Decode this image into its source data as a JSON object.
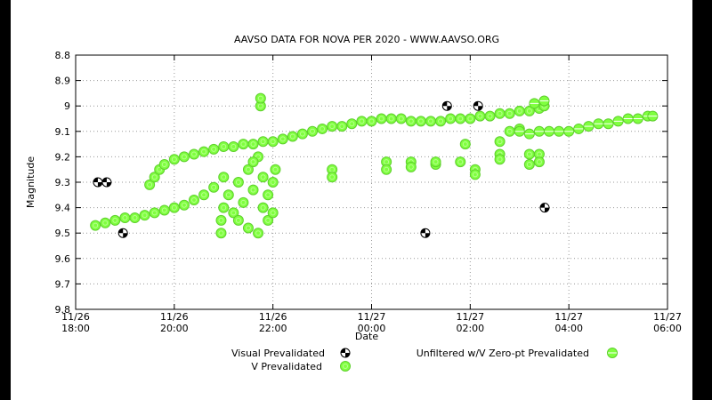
{
  "chart_data": {
    "type": "scatter",
    "title": "AAVSO DATA FOR NOVA PER 2020 - WWW.AAVSO.ORG",
    "xlabel": "Date",
    "ylabel": "Magnitude",
    "xlim": [
      18,
      30
    ],
    "ylim": [
      9.8,
      8.8
    ],
    "xticks": [
      {
        "value": 18,
        "label": "11/26 18:00"
      },
      {
        "value": 20,
        "label": "11/26 20:00"
      },
      {
        "value": 22,
        "label": "11/26 22:00"
      },
      {
        "value": 24,
        "label": "11/27 00:00"
      },
      {
        "value": 26,
        "label": "11/27 02:00"
      },
      {
        "value": 28,
        "label": "11/27 04:00"
      },
      {
        "value": 30,
        "label": "11/27 06:00"
      }
    ],
    "yticks": [
      8.8,
      8.9,
      9,
      9.1,
      9.2,
      9.3,
      9.4,
      9.5,
      9.6,
      9.7,
      9.8
    ],
    "grid": true,
    "series": [
      {
        "name": "Visual Prevalidated",
        "color": "#000000",
        "x": [
          18.45,
          18.63,
          18.96,
          25.09,
          25.53,
          26.16,
          27.51
        ],
        "values": [
          9.3,
          9.3,
          9.5,
          9.5,
          9.0,
          9.0,
          9.4
        ]
      },
      {
        "name": "V Prevalidated",
        "color": "#80ff40",
        "x": [
          19.5,
          19.6,
          19.7,
          19.8,
          20.0,
          20.2,
          20.4,
          20.6,
          20.8,
          21.0,
          21.2,
          21.4,
          21.6,
          21.8,
          22.0,
          22.2,
          22.4,
          22.6,
          22.8,
          23.0,
          23.2,
          23.4,
          23.6,
          23.8,
          24.0,
          24.2,
          24.4,
          24.6,
          24.8,
          25.0,
          25.2,
          25.4,
          25.6,
          25.8,
          26.0,
          26.2,
          26.4,
          26.6,
          26.8,
          27.0,
          27.2,
          27.4,
          27.5,
          18.4,
          18.6,
          18.8,
          19.0,
          19.2,
          19.4,
          19.6,
          19.8,
          20.0,
          20.2,
          20.4,
          20.6,
          20.8,
          21.0,
          20.95,
          20.95,
          21.0,
          21.1,
          21.2,
          21.3,
          21.3,
          21.4,
          21.5,
          21.5,
          21.6,
          21.7,
          21.7,
          21.8,
          21.8,
          21.9,
          21.9,
          22.0,
          22.0,
          21.75,
          21.75,
          22.05,
          21.6,
          23.2,
          23.2,
          24.3,
          24.3,
          24.8,
          24.8,
          25.3,
          25.3,
          25.8,
          25.9,
          26.1,
          26.1,
          26.6,
          26.6,
          26.6,
          27.2,
          27.2,
          27.4,
          27.4,
          26.8,
          27.0
        ],
        "values": [
          9.31,
          9.28,
          9.25,
          9.23,
          9.21,
          9.2,
          9.19,
          9.18,
          9.17,
          9.16,
          9.16,
          9.15,
          9.15,
          9.14,
          9.14,
          9.13,
          9.12,
          9.11,
          9.1,
          9.09,
          9.08,
          9.08,
          9.07,
          9.06,
          9.06,
          9.05,
          9.05,
          9.05,
          9.06,
          9.06,
          9.06,
          9.06,
          9.05,
          9.05,
          9.05,
          9.04,
          9.04,
          9.03,
          9.03,
          9.02,
          9.02,
          9.01,
          9.0,
          9.47,
          9.46,
          9.45,
          9.44,
          9.44,
          9.43,
          9.42,
          9.41,
          9.4,
          9.39,
          9.37,
          9.35,
          9.32,
          9.28,
          9.45,
          9.5,
          9.4,
          9.35,
          9.42,
          9.3,
          9.45,
          9.38,
          9.25,
          9.48,
          9.33,
          9.5,
          9.2,
          9.4,
          9.28,
          9.45,
          9.35,
          9.3,
          9.42,
          9.0,
          8.97,
          9.25,
          9.22,
          9.25,
          9.28,
          9.22,
          9.25,
          9.22,
          9.24,
          9.23,
          9.22,
          9.22,
          9.15,
          9.25,
          9.27,
          9.14,
          9.19,
          9.21,
          9.19,
          9.23,
          9.19,
          9.22,
          9.1,
          9.09
        ]
      },
      {
        "name": "Unfiltered w/V Zero-pt Prevalidated",
        "color": "#80ff40",
        "x": [
          27.0,
          27.2,
          27.4,
          27.6,
          27.8,
          28.0,
          28.2,
          28.4,
          28.6,
          28.8,
          29.0,
          29.2,
          29.4,
          29.6,
          29.7,
          27.3,
          27.5
        ],
        "values": [
          9.1,
          9.11,
          9.1,
          9.1,
          9.1,
          9.1,
          9.09,
          9.08,
          9.07,
          9.07,
          9.06,
          9.05,
          9.05,
          9.04,
          9.04,
          8.99,
          8.98
        ]
      }
    ]
  }
}
